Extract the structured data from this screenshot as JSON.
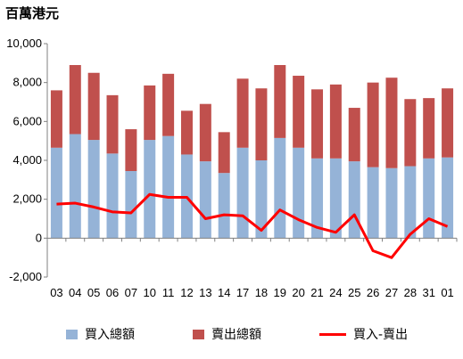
{
  "unit_label": "百萬港元",
  "colors": {
    "buy": "#95B3D7",
    "sell": "#C0504D",
    "net": "#FF0000"
  },
  "legend": {
    "buy": "買入總額",
    "sell": "賣出總額",
    "net": "買入-賣出"
  },
  "chart_data": {
    "type": "bar",
    "stacked": true,
    "title": "百萬港元",
    "xlabel": "",
    "ylabel": "",
    "ylim": [
      -2000,
      10000
    ],
    "yticks": [
      "-2,000",
      "0",
      "2,000",
      "4,000",
      "6,000",
      "8,000",
      "10,000"
    ],
    "ytick_values": [
      -2000,
      0,
      2000,
      4000,
      6000,
      8000,
      10000
    ],
    "grid": false,
    "legend_position": "bottom",
    "categories": [
      "03",
      "04",
      "05",
      "06",
      "07",
      "10",
      "11",
      "12",
      "13",
      "14",
      "17",
      "18",
      "19",
      "20",
      "21",
      "24",
      "25",
      "26",
      "27",
      "28",
      "31",
      "01"
    ],
    "series": [
      {
        "name": "買入總額",
        "kind": "bar",
        "values": [
          4650,
          5350,
          5050,
          4350,
          3450,
          5050,
          5250,
          4300,
          3950,
          3350,
          4650,
          4000,
          5150,
          4650,
          4100,
          4100,
          3950,
          3650,
          3600,
          3700,
          4100,
          4150
        ]
      },
      {
        "name": "賣出總額",
        "kind": "bar",
        "values": [
          2950,
          3550,
          3450,
          3000,
          2150,
          2800,
          3200,
          2250,
          2950,
          2100,
          3550,
          3700,
          3750,
          3700,
          3550,
          3800,
          2750,
          4350,
          4650,
          3450,
          3100,
          3550
        ]
      },
      {
        "name": "買入-賣出",
        "kind": "line",
        "values": [
          1750,
          1800,
          1600,
          1350,
          1300,
          2250,
          2100,
          2100,
          1000,
          1200,
          1150,
          400,
          1450,
          950,
          550,
          300,
          1200,
          -650,
          -1000,
          200,
          1000,
          600
        ]
      }
    ]
  }
}
